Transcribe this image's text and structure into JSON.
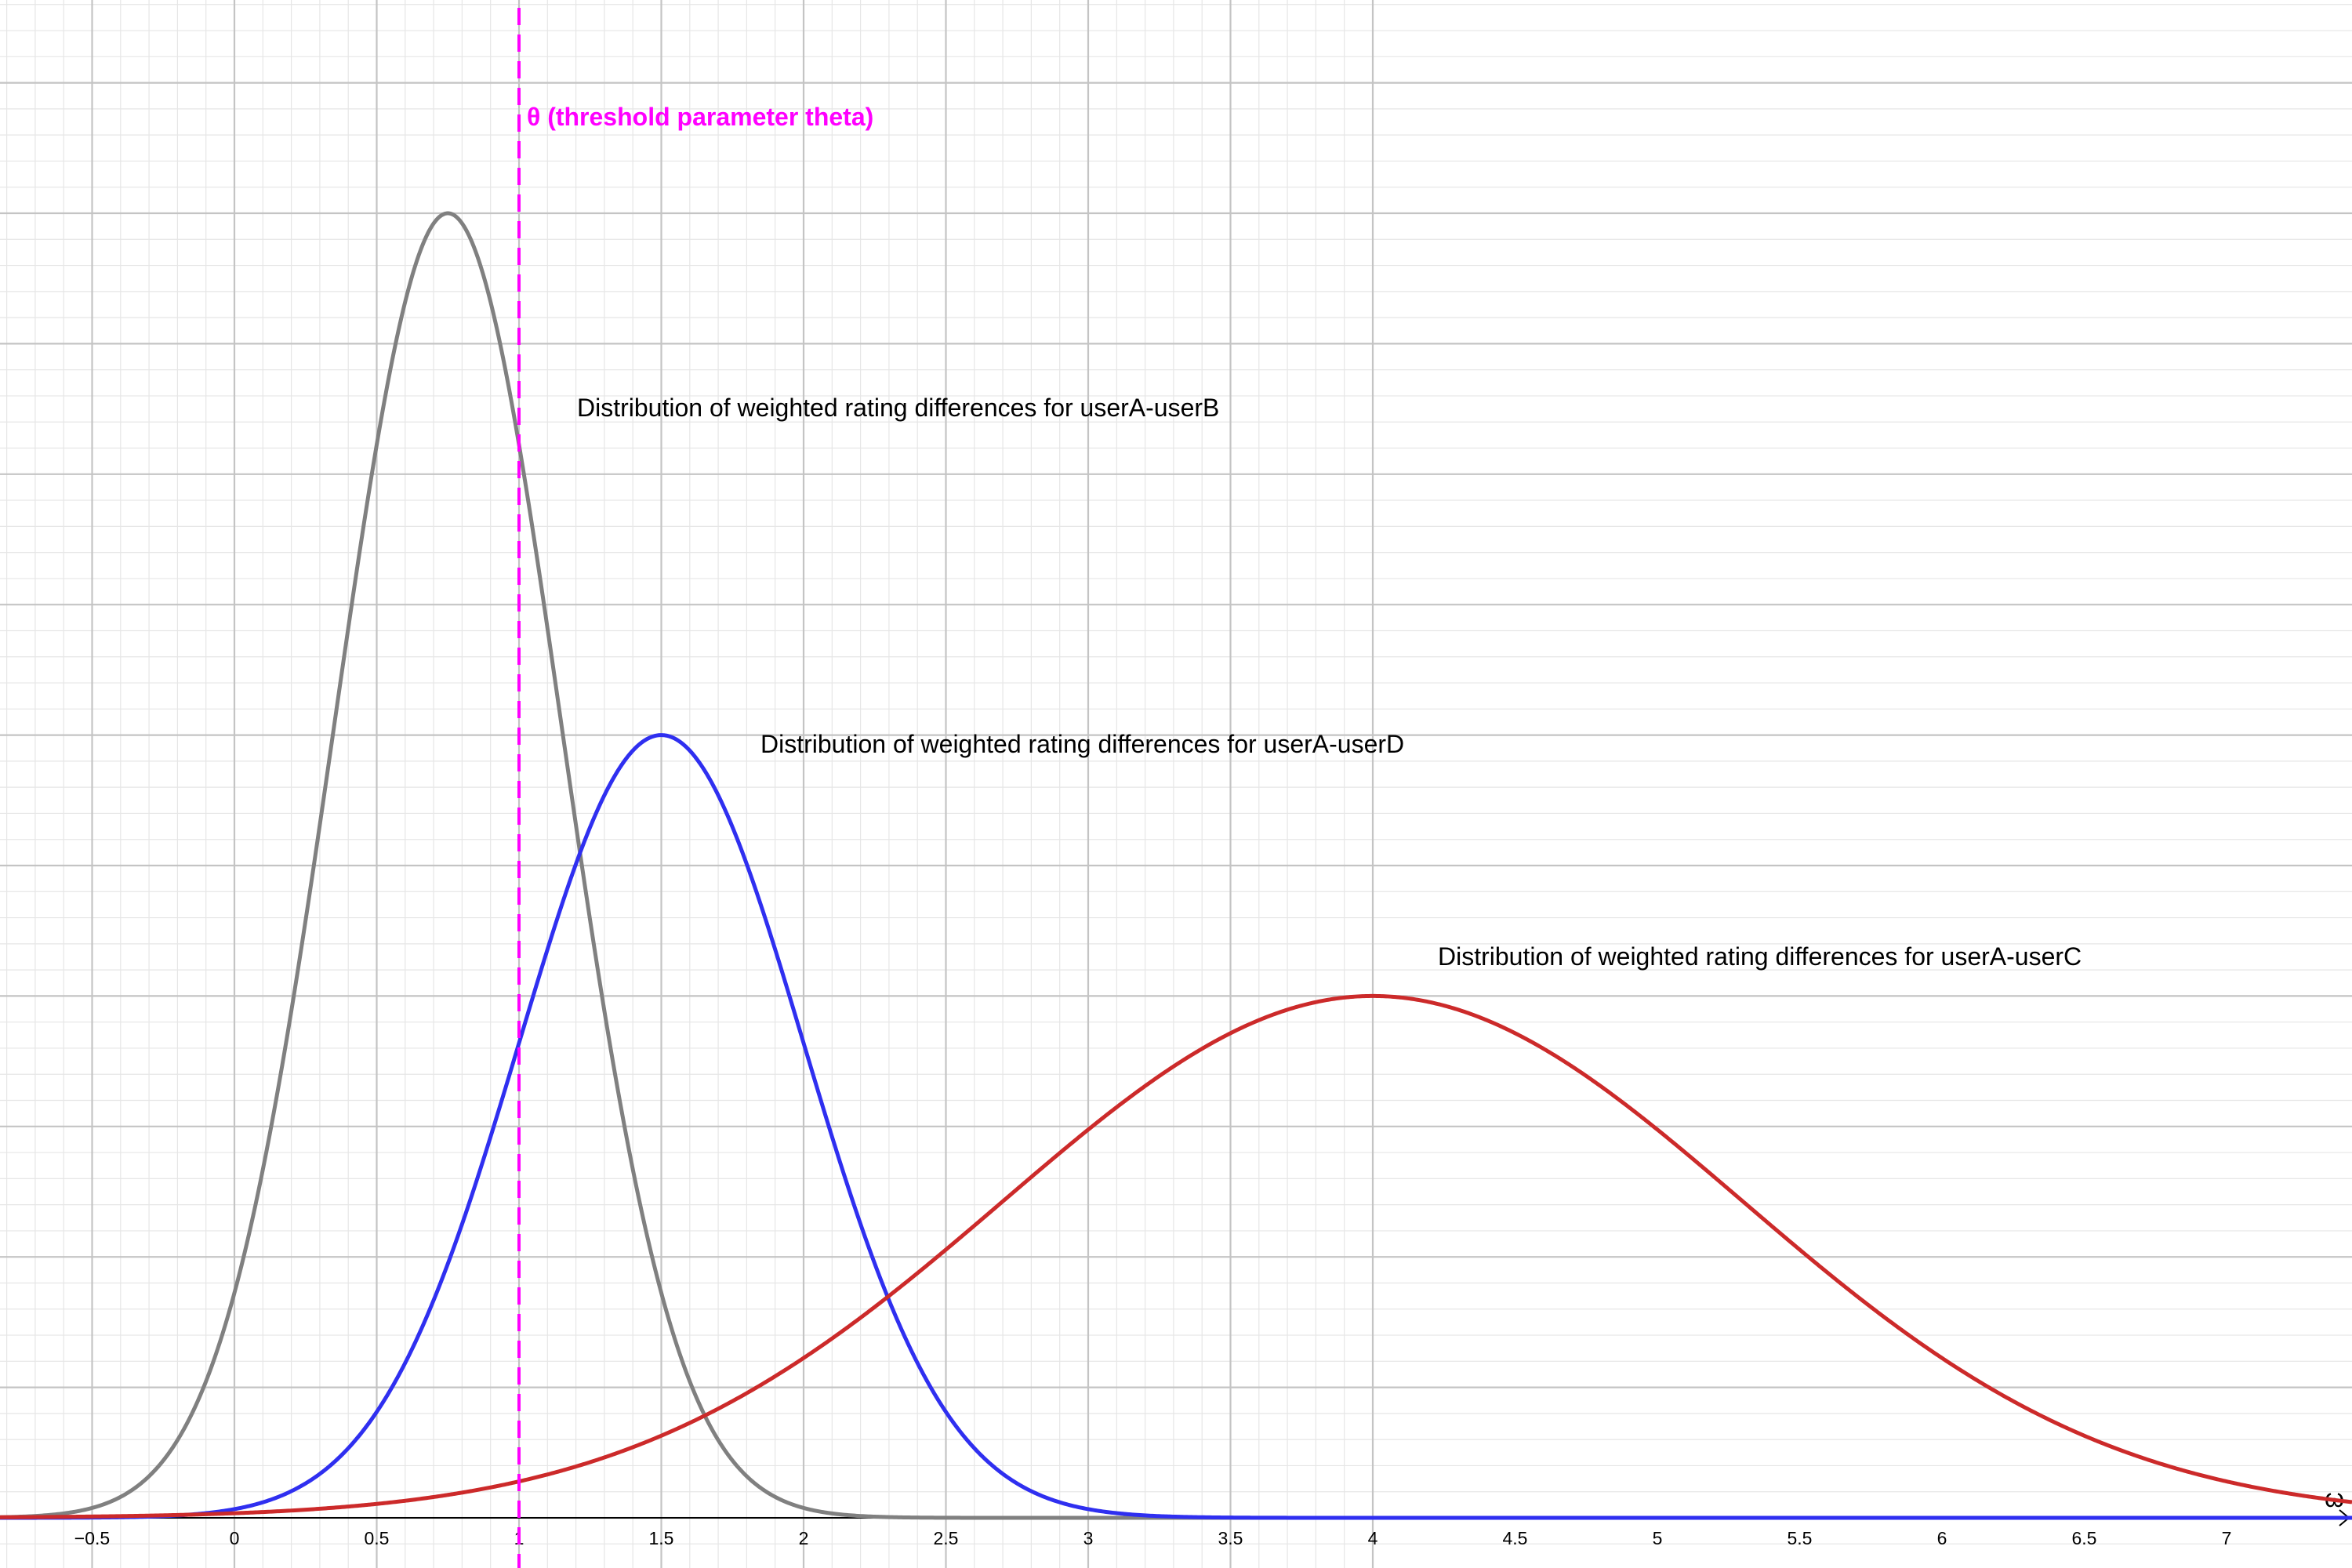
{
  "chart_data": {
    "type": "line",
    "xlabel": "ω",
    "ylabel": "",
    "xlim": [
      -0.8,
      7.4
    ],
    "ylim": [
      0,
      1.2
    ],
    "grid": true,
    "x_ticks": [
      "−0.5",
      "0",
      "0.5",
      "1",
      "1.5",
      "2",
      "2.5",
      "3",
      "3.5",
      "4",
      "4.5",
      "5",
      "5.5",
      "6",
      "6.5",
      "7"
    ],
    "threshold": {
      "x": 1,
      "label": "θ (threshold parameter theta)",
      "color": "#ff00ff"
    },
    "series": [
      {
        "name": "Distribution of weighted rating differences for userA-userB",
        "color": "#808080",
        "mean": 0.75,
        "sd": 0.4,
        "peak": 1.0
      },
      {
        "name": "Distribution of weighted rating differences for userA-userD",
        "color": "#2f2ff0",
        "mean": 1.5,
        "sd": 0.5,
        "peak": 0.6
      },
      {
        "name": "Distribution of weighted rating differences for userA-userC",
        "color": "#cc2a2a",
        "mean": 4.0,
        "sd": 1.3,
        "peak": 0.4
      }
    ]
  }
}
